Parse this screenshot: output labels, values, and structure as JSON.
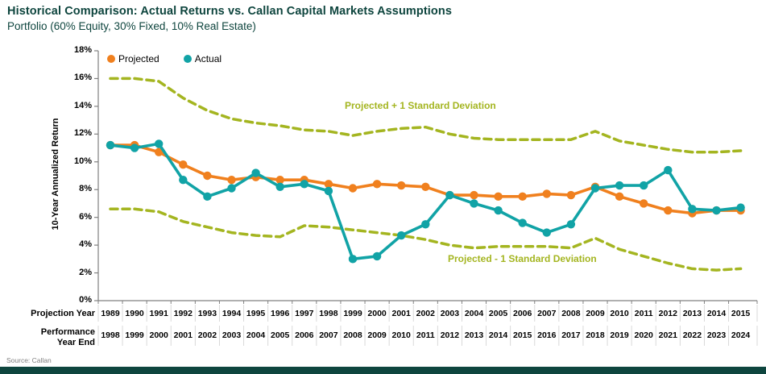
{
  "page": {
    "title": "Historical Comparison: Actual Returns vs. Callan Capital Markets Assumptions",
    "subtitle": "Portfolio (60% Equity, 30% Fixed, 10% Real Estate)",
    "source": "Source: Callan"
  },
  "colors": {
    "title_text": "#0e453e",
    "projected": "#f0801e",
    "actual": "#11a3a6",
    "band": "#a4b520",
    "axis": "#808080",
    "separator": "#d9d9d9",
    "footer_bar": "#0e453e"
  },
  "legend": {
    "projected_label": "Projected",
    "actual_label": "Actual"
  },
  "band_labels": {
    "upper": "Projected + 1 Standard Deviation",
    "lower": "Projected - 1 Standard Deviation"
  },
  "y_axis": {
    "title": "10-Year Annualized Return",
    "tick_labels": [
      "0%",
      "2%",
      "4%",
      "6%",
      "8%",
      "10%",
      "12%",
      "14%",
      "16%",
      "18%"
    ]
  },
  "x_axis": {
    "row1_header": "Projection Year",
    "row2_header": "Performance\nYear End"
  },
  "chart_data": {
    "type": "line",
    "title": "Historical Comparison: Actual Returns vs. Callan Capital Markets Assumptions",
    "subtitle": "Portfolio (60% Equity, 30% Fixed, 10% Real Estate)",
    "ylabel": "10-Year Annualized Return",
    "ylim": [
      0,
      18
    ],
    "y_tick_step": 2,
    "grid": false,
    "legend_position": "top-left-inside",
    "categories_projection_year": [
      1989,
      1990,
      1991,
      1992,
      1993,
      1994,
      1995,
      1996,
      1997,
      1998,
      1999,
      2000,
      2001,
      2002,
      2003,
      2004,
      2005,
      2006,
      2007,
      2008,
      2009,
      2010,
      2011,
      2012,
      2013,
      2014,
      2015
    ],
    "categories_performance_year_end": [
      1998,
      1999,
      2000,
      2001,
      2002,
      2003,
      2004,
      2005,
      2006,
      2007,
      2008,
      2009,
      2010,
      2011,
      2012,
      2013,
      2014,
      2015,
      2016,
      2017,
      2018,
      2019,
      2020,
      2021,
      2022,
      2023,
      2024
    ],
    "series": [
      {
        "name": "Projected",
        "style": "solid-markers",
        "color": "#f0801e",
        "values": [
          11.2,
          11.2,
          10.7,
          9.8,
          9.0,
          8.7,
          8.9,
          8.7,
          8.7,
          8.4,
          8.1,
          8.4,
          8.3,
          8.2,
          7.6,
          7.6,
          7.5,
          7.5,
          7.7,
          7.6,
          8.2,
          7.5,
          7.0,
          6.5,
          6.3,
          6.5,
          6.5
        ]
      },
      {
        "name": "Actual",
        "style": "solid-markers",
        "color": "#11a3a6",
        "values": [
          11.2,
          11.0,
          11.3,
          8.7,
          7.5,
          8.1,
          9.2,
          8.2,
          8.4,
          7.9,
          3.0,
          3.2,
          4.7,
          5.5,
          7.6,
          7.0,
          6.5,
          5.6,
          4.9,
          5.5,
          8.1,
          8.3,
          8.3,
          9.4,
          6.6,
          6.5,
          6.7
        ]
      },
      {
        "name": "Projected + 1 Standard Deviation",
        "style": "dashed",
        "color": "#a4b520",
        "values": [
          16.0,
          16.0,
          15.8,
          14.6,
          13.7,
          13.1,
          12.8,
          12.6,
          12.3,
          12.2,
          11.9,
          12.2,
          12.4,
          12.5,
          12.0,
          11.7,
          11.6,
          11.6,
          11.6,
          11.6,
          12.2,
          11.5,
          11.2,
          10.9,
          10.7,
          10.7,
          10.8
        ]
      },
      {
        "name": "Projected - 1 Standard Deviation",
        "style": "dashed",
        "color": "#a4b520",
        "values": [
          6.6,
          6.6,
          6.4,
          5.7,
          5.3,
          4.9,
          4.7,
          4.6,
          5.4,
          5.3,
          5.1,
          4.9,
          4.7,
          4.4,
          4.0,
          3.8,
          3.9,
          3.9,
          3.9,
          3.8,
          4.5,
          3.7,
          3.2,
          2.7,
          2.3,
          2.2,
          2.3
        ]
      }
    ]
  }
}
